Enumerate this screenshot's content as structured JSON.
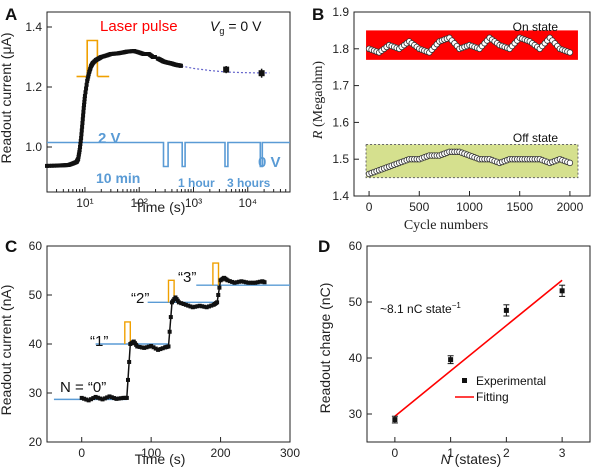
{
  "panel_labels": [
    "A",
    "B",
    "C",
    "D"
  ],
  "chart_data": [
    {
      "panel": "A",
      "type": "line",
      "xscale": "log",
      "xlim": [
        2,
        60000
      ],
      "ylim": [
        0.85,
        1.45
      ],
      "xticks": [
        10,
        100,
        1000,
        10000
      ],
      "xtick_labels": [
        "10¹",
        "10²",
        "10³",
        "10⁴"
      ],
      "yticks": [
        1.0,
        1.2,
        1.4
      ],
      "ytick_labels": [
        "1.0",
        "1.2",
        "1.4"
      ],
      "xlabel": "Time (s)",
      "ylabel": "Readout current (μA)",
      "annotations": {
        "laser_pulse": "Laser pulse",
        "vg_symbol": "V",
        "vg_sub": "g",
        "vg_value": "= 0 V",
        "v2": "2 V",
        "v0": "0 V",
        "t10min": "10 min",
        "t1hour": "1 hour",
        "t3hours": "3 hours"
      },
      "series": [
        {
          "x": [
            2,
            3,
            4,
            5,
            6,
            7,
            7.5,
            8,
            8.5,
            9,
            9.5,
            10,
            11,
            12,
            13,
            14,
            16,
            18,
            20,
            25,
            30,
            40,
            50,
            60,
            80,
            100,
            120,
            150,
            180,
            200
          ],
          "y": [
            0.937,
            0.938,
            0.939,
            0.94,
            0.945,
            0.95,
            0.96,
            0.99,
            1.03,
            1.08,
            1.13,
            1.17,
            1.22,
            1.25,
            1.27,
            1.28,
            1.29,
            1.295,
            1.3,
            1.305,
            1.31,
            1.312,
            1.315,
            1.318,
            1.32,
            1.315,
            1.31,
            1.31,
            1.3,
            1.3
          ]
        },
        {
          "x": [
            220,
            250,
            280,
            320,
            360,
            400,
            450,
            500,
            550,
            600
          ],
          "y": [
            1.295,
            1.29,
            1.285,
            1.282,
            1.28,
            1.278,
            1.275,
            1.273,
            1.272,
            1.27
          ]
        }
      ],
      "fit_curve": {
        "x": [
          600,
          1000,
          2000,
          4000,
          8000,
          15000,
          25000
        ],
        "y": [
          1.27,
          1.262,
          1.255,
          1.25,
          1.248,
          1.247,
          1.247
        ]
      },
      "points_with_error": [
        {
          "x": 4000,
          "y": 1.258,
          "err": 0.012
        },
        {
          "x": 18000,
          "y": 1.246,
          "err": 0.015
        }
      ],
      "gate_trace_x": [
        2,
        280,
        280,
        340,
        340,
        620,
        620,
        700,
        700,
        3800,
        3800,
        4300,
        4300,
        17000,
        17000,
        18500,
        18500,
        60000
      ],
      "gate_trace_level": [
        1,
        1,
        0,
        0,
        1,
        1,
        0,
        0,
        1,
        1,
        0,
        0,
        1,
        1,
        0,
        0,
        1,
        1
      ],
      "gate_trace_y_high": 1.015,
      "gate_trace_y_low": 0.935,
      "laser_pulse_x": [
        11,
        11,
        17,
        17
      ],
      "laser_pulse_level": [
        0,
        1,
        1,
        0
      ],
      "laser_pulse_y_low": 1.235,
      "laser_pulse_y_high": 1.355,
      "colors": {
        "data": "#111111",
        "fit": "#6666cc",
        "gate": "#5a9bd5",
        "laser": "#f0a000",
        "label": "#ff0000"
      }
    },
    {
      "panel": "B",
      "type": "scatter",
      "xlim": [
        -150,
        2200
      ],
      "ylim": [
        1.4,
        1.9
      ],
      "xticks": [
        0,
        500,
        1000,
        1500,
        2000
      ],
      "yticks": [
        1.4,
        1.5,
        1.6,
        1.7,
        1.8,
        1.9
      ],
      "xlabel": "Cycle numbers",
      "ylabel_symbol": "R",
      "ylabel_rest": " (Megaohm)",
      "series": [
        {
          "name": "On state",
          "x": [
            0,
            100,
            200,
            300,
            400,
            500,
            600,
            700,
            800,
            900,
            1000,
            1100,
            1200,
            1300,
            1400,
            1500,
            1600,
            1700,
            1800,
            1900,
            2000
          ],
          "y": [
            1.8,
            1.79,
            1.81,
            1.8,
            1.82,
            1.8,
            1.79,
            1.82,
            1.83,
            1.8,
            1.81,
            1.8,
            1.83,
            1.81,
            1.8,
            1.83,
            1.82,
            1.8,
            1.83,
            1.8,
            1.79
          ]
        },
        {
          "name": "Off state",
          "x": [
            0,
            100,
            200,
            300,
            400,
            500,
            600,
            700,
            800,
            900,
            1000,
            1100,
            1200,
            1300,
            1400,
            1500,
            1600,
            1700,
            1800,
            1900,
            2000
          ],
          "y": [
            1.46,
            1.47,
            1.48,
            1.49,
            1.5,
            1.5,
            1.51,
            1.51,
            1.52,
            1.52,
            1.51,
            1.5,
            1.5,
            1.49,
            1.5,
            1.5,
            1.5,
            1.5,
            1.49,
            1.5,
            1.49
          ]
        }
      ],
      "bands": [
        {
          "name": "On state",
          "y0": 1.77,
          "y1": 1.85,
          "color": "#ff0000"
        },
        {
          "name": "Off state",
          "y0": 1.45,
          "y1": 1.54,
          "color": "#d5e08e"
        }
      ]
    },
    {
      "panel": "C",
      "type": "line",
      "xlim": [
        -50,
        300
      ],
      "ylim": [
        20,
        60
      ],
      "xticks": [
        0,
        100,
        200,
        300
      ],
      "yticks": [
        20,
        30,
        40,
        50,
        60
      ],
      "xlabel": "Time (s)",
      "ylabel": "Readout current (nA)",
      "state_labels": [
        "N = “0”",
        "“1”",
        "“2”",
        "“3”"
      ],
      "series": [
        {
          "x": [
            0,
            10,
            20,
            30,
            40,
            50,
            60,
            65,
            70,
            75,
            80,
            90,
            100,
            110,
            120,
            125,
            130,
            135,
            140,
            150,
            160,
            170,
            180,
            190,
            195,
            200,
            205,
            210,
            220,
            230,
            240,
            250,
            260,
            265
          ],
          "y": [
            29,
            28.5,
            29.2,
            28.7,
            29.3,
            28.8,
            29,
            29,
            40,
            40.5,
            39.5,
            39.2,
            39.6,
            38.8,
            39.3,
            39.5,
            48.5,
            49.5,
            48.5,
            48,
            47.5,
            47.8,
            47.5,
            48,
            48.5,
            53,
            53.5,
            53,
            52.5,
            52.8,
            52.5,
            52.5,
            52.8,
            52.5
          ]
        }
      ],
      "levels": [
        {
          "x0": -40,
          "x1": 65,
          "y": 28.7
        },
        {
          "x0": 20,
          "x1": 125,
          "y": 40
        },
        {
          "x0": 95,
          "x1": 195,
          "y": 48.5
        },
        {
          "x0": 165,
          "x1": 300,
          "y": 52
        }
      ],
      "pulses": [
        {
          "x0": 62,
          "x1": 70,
          "y0": 40,
          "y1": 44.5
        },
        {
          "x0": 125,
          "x1": 133,
          "y0": 48.5,
          "y1": 53
        },
        {
          "x0": 189,
          "x1": 197,
          "y0": 52,
          "y1": 56.5
        }
      ],
      "colors": {
        "data": "#111111",
        "level": "#5a9bd5",
        "pulse": "#f0a000"
      }
    },
    {
      "panel": "D",
      "type": "scatter",
      "xlim": [
        -0.5,
        3.5
      ],
      "ylim": [
        25,
        60
      ],
      "xticks": [
        0,
        1,
        2,
        3
      ],
      "yticks": [
        30,
        40,
        50,
        60
      ],
      "xlabel_symbol": "N",
      "xlabel_rest": " (states)",
      "ylabel": "Readout charge (nC)",
      "annotation_main": "~8.1 nC state",
      "annotation_sup": "−1",
      "series": [
        {
          "name": "Experimental",
          "x": [
            0,
            1,
            2,
            3
          ],
          "y": [
            29,
            39.7,
            48.5,
            52
          ],
          "err": [
            0.6,
            0.7,
            1.0,
            1.0
          ]
        },
        {
          "name": "Fitting",
          "x": [
            0,
            3
          ],
          "y": [
            29.6,
            53.9
          ]
        }
      ],
      "legend_position": "bottom-right",
      "colors": {
        "data": "#111111",
        "fit": "#ff0000"
      }
    }
  ]
}
